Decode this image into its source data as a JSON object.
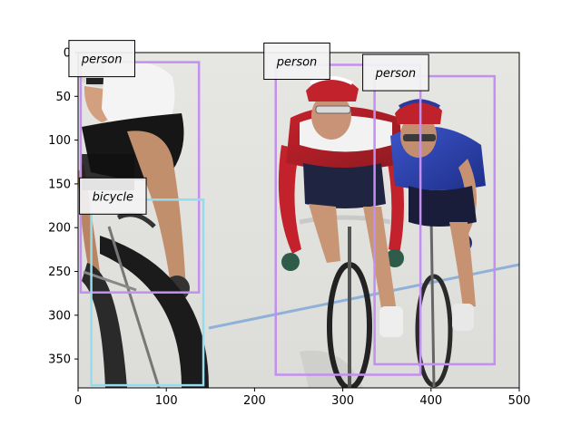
{
  "figure": {
    "image_extent": {
      "x": [
        0,
        500
      ],
      "y": [
        383,
        0
      ]
    },
    "x_ticks": [
      0,
      100,
      200,
      300,
      400,
      500
    ],
    "y_ticks": [
      0,
      50,
      100,
      150,
      200,
      250,
      300,
      350
    ],
    "x_tick_labels": [
      "0",
      "100",
      "200",
      "300",
      "400",
      "500"
    ],
    "y_tick_labels": [
      "0",
      "50",
      "100",
      "150",
      "200",
      "250",
      "300",
      "350"
    ],
    "colors": {
      "person_box": "#c38ff0",
      "bicycle_box": "#96dcef",
      "label_bg": "#f3f3f3",
      "label_border": "#000000"
    }
  },
  "detections": [
    {
      "label": "person",
      "x1": 3,
      "y1": 11,
      "x2": 137,
      "y2": 274,
      "color": "#c38ff0"
    },
    {
      "label": "bicycle",
      "x1": 15,
      "y1": 168,
      "x2": 142,
      "y2": 380,
      "color": "#96dcef"
    },
    {
      "label": "person",
      "x1": 224,
      "y1": 14,
      "x2": 388,
      "y2": 368,
      "color": "#c38ff0"
    },
    {
      "label": "person",
      "x1": 336,
      "y1": 27,
      "x2": 472,
      "y2": 356,
      "color": "#c38ff0"
    }
  ]
}
